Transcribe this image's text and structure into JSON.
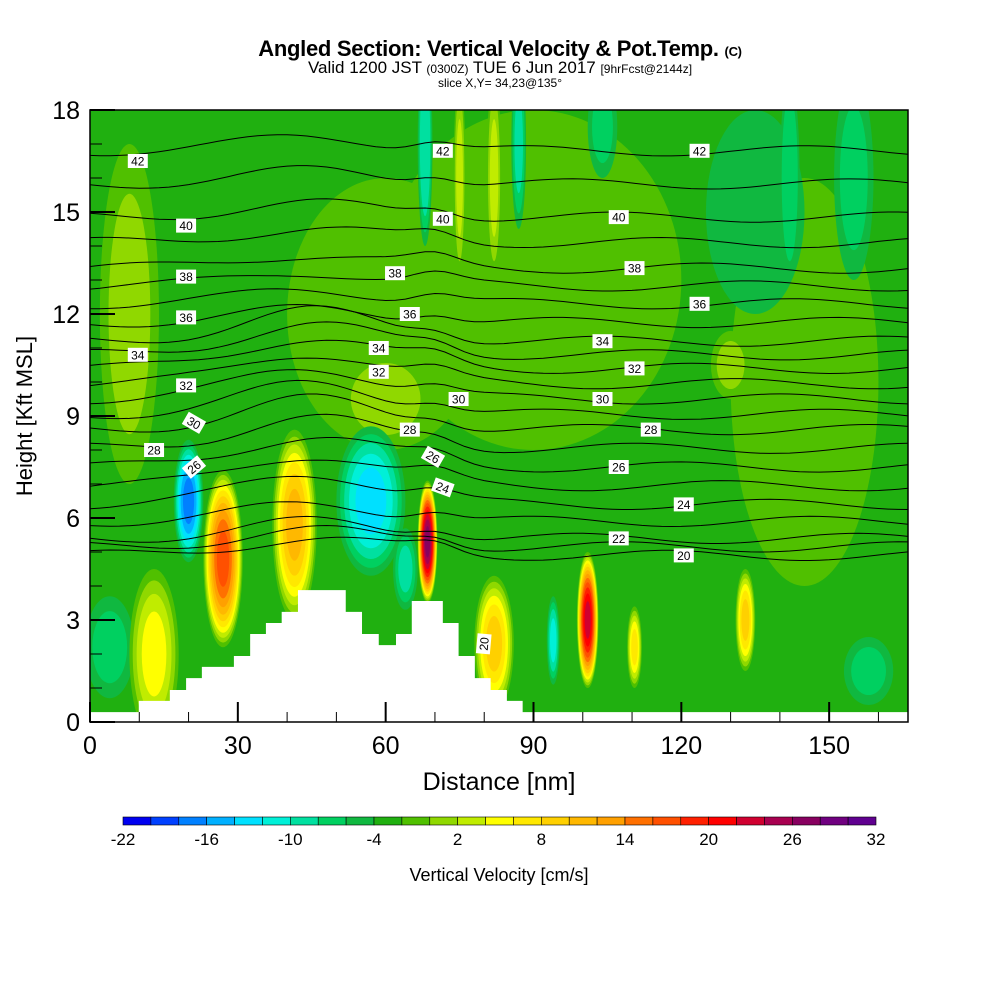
{
  "header": {
    "title": "Angled Section: Vertical Velocity & Pot.Temp.",
    "title_unit": "(C)",
    "valid_prefix": "Valid 1200 JST",
    "valid_utc": "(0300Z)",
    "valid_date": "TUE 6 Jun 2017",
    "forecast": "[9hrFcst@2144z]",
    "slice": "slice X,Y= 34,23@135°"
  },
  "chart_data": {
    "type": "heatmap",
    "subtype": "filled contour cross-section with isentrope line contours",
    "xlabel": "Distance [nm]",
    "ylabel": "Height [Kft MSL]",
    "xlim": [
      0,
      166
    ],
    "ylim": [
      0,
      18
    ],
    "xticks": [
      0,
      30,
      60,
      90,
      120,
      150
    ],
    "yticks": [
      0,
      3,
      6,
      9,
      12,
      15,
      18
    ],
    "colorbar": {
      "label": "Vertical Velocity [cm/s]",
      "min": -22,
      "max": 32,
      "step": 2,
      "tick_labels": [
        "-22",
        "-16",
        "-10",
        "-4",
        "2",
        "8",
        "14",
        "20",
        "26",
        "32"
      ],
      "colors": [
        "#0000f0",
        "#0040ff",
        "#0080ff",
        "#00b0ff",
        "#00e0ff",
        "#00f0d8",
        "#00e0a0",
        "#00d060",
        "#10b840",
        "#20b010",
        "#50c000",
        "#90d800",
        "#c0ec00",
        "#ffff00",
        "#ffe800",
        "#ffd000",
        "#ffb800",
        "#ffa000",
        "#ff7000",
        "#ff5000",
        "#ff2000",
        "#ff0000",
        "#d00030",
        "#a80050",
        "#880060",
        "#700080",
        "#600090"
      ]
    },
    "background_value": -3,
    "field_features_cm_s": [
      {
        "x": 8,
        "y": 12,
        "rx": 6,
        "ry": 5,
        "v": 1
      },
      {
        "x": 60,
        "y": 12,
        "rx": 20,
        "ry": 4,
        "v": -1
      },
      {
        "x": 90,
        "y": 13,
        "rx": 30,
        "ry": 5,
        "v": -1
      },
      {
        "x": 145,
        "y": 10,
        "rx": 15,
        "ry": 6,
        "v": -1
      },
      {
        "x": 135,
        "y": 15,
        "rx": 10,
        "ry": 3,
        "v": -5
      },
      {
        "x": 155,
        "y": 16,
        "rx": 4,
        "ry": 3,
        "v": -7
      },
      {
        "x": 60,
        "y": 9.5,
        "rx": 10,
        "ry": 1.5,
        "v": 1
      },
      {
        "x": 130,
        "y": 10.5,
        "rx": 4,
        "ry": 1,
        "v": 1
      },
      {
        "x": 4,
        "y": 2.2,
        "rx": 5,
        "ry": 1.5,
        "v": -7
      },
      {
        "x": 158,
        "y": 1.5,
        "rx": 5,
        "ry": 1,
        "v": -7
      },
      {
        "x": 68,
        "y": 17,
        "rx": 1.5,
        "ry": 3,
        "v": -10
      },
      {
        "x": 87,
        "y": 17,
        "rx": 1.5,
        "ry": 2.5,
        "v": -9
      },
      {
        "x": 82,
        "y": 16,
        "rx": 1.5,
        "ry": 3,
        "v": 3
      },
      {
        "x": 75,
        "y": 16,
        "rx": 1.2,
        "ry": 3,
        "v": 3
      },
      {
        "x": 104,
        "y": 17.5,
        "rx": 3,
        "ry": 1.5,
        "v": -7
      },
      {
        "x": 142,
        "y": 16,
        "rx": 2,
        "ry": 3,
        "v": -8
      },
      {
        "x": 13,
        "y": 2,
        "rx": 5,
        "ry": 2.5,
        "v": 5
      },
      {
        "x": 82,
        "y": 2.3,
        "rx": 4,
        "ry": 2,
        "v": 8
      },
      {
        "x": 20,
        "y": 6.5,
        "rx": 3,
        "ry": 1.8,
        "v": -17
      },
      {
        "x": 57,
        "y": 6.5,
        "rx": 7,
        "ry": 2.2,
        "v": -13
      },
      {
        "x": 64,
        "y": 4.5,
        "rx": 2.5,
        "ry": 1.2,
        "v": -9
      },
      {
        "x": 27,
        "y": 4.8,
        "rx": 4,
        "ry": 2.6,
        "v": 17
      },
      {
        "x": 41.5,
        "y": 5.8,
        "rx": 4.5,
        "ry": 2.8,
        "v": 11
      },
      {
        "x": 68.5,
        "y": 5.3,
        "rx": 2,
        "ry": 1.8,
        "v": 27
      },
      {
        "x": 101,
        "y": 3,
        "rx": 2.2,
        "ry": 2,
        "v": 23
      },
      {
        "x": 94,
        "y": 2.4,
        "rx": 1.3,
        "ry": 1.3,
        "v": -11
      },
      {
        "x": 133,
        "y": 3,
        "rx": 2,
        "ry": 1.5,
        "v": 8
      },
      {
        "x": 110.5,
        "y": 2.2,
        "rx": 1.5,
        "ry": 1.2,
        "v": 6
      }
    ],
    "terrain_kft": [
      [
        0,
        0.29
      ],
      [
        9.9,
        0.29
      ],
      [
        9.9,
        0.62
      ],
      [
        16.2,
        0.62
      ],
      [
        16.2,
        0.94
      ],
      [
        19.5,
        0.94
      ],
      [
        19.5,
        1.29
      ],
      [
        22.7,
        1.29
      ],
      [
        22.7,
        1.62
      ],
      [
        29.2,
        1.62
      ],
      [
        29.2,
        1.94
      ],
      [
        32.5,
        1.94
      ],
      [
        32.5,
        2.59
      ],
      [
        35.7,
        2.59
      ],
      [
        35.7,
        2.91
      ],
      [
        38.9,
        2.91
      ],
      [
        38.9,
        3.24
      ],
      [
        42.2,
        3.24
      ],
      [
        42.2,
        3.88
      ],
      [
        51.9,
        3.88
      ],
      [
        51.9,
        3.24
      ],
      [
        55.2,
        3.24
      ],
      [
        55.2,
        2.59
      ],
      [
        58.6,
        2.59
      ],
      [
        58.6,
        2.26
      ],
      [
        62.1,
        2.26
      ],
      [
        62.1,
        2.59
      ],
      [
        65.3,
        2.59
      ],
      [
        65.3,
        3.56
      ],
      [
        71.6,
        3.56
      ],
      [
        71.6,
        2.91
      ],
      [
        74.8,
        2.91
      ],
      [
        74.8,
        1.94
      ],
      [
        78.1,
        1.94
      ],
      [
        78.1,
        1.29
      ],
      [
        81.3,
        1.29
      ],
      [
        81.3,
        0.94
      ],
      [
        84.6,
        0.94
      ],
      [
        84.6,
        0.62
      ],
      [
        87.8,
        0.62
      ],
      [
        87.8,
        0.29
      ],
      [
        166,
        0.29
      ]
    ],
    "isentrope_base_heights_kft": {
      "20": 4.9,
      "22": 5.4,
      "24": 6.4,
      "26": 7.5,
      "28": 8.6,
      "30": 9.5,
      "32": 10.4,
      "34": 11.2,
      "36": 12.3,
      "38": 13.35,
      "40": 14.85,
      "42": 16.8
    },
    "contour_labels": [
      {
        "text": "42",
        "x": 9.7,
        "y": 16.5
      },
      {
        "text": "42",
        "x": 71.6,
        "y": 16.8
      },
      {
        "text": "42",
        "x": 123.7,
        "y": 16.8
      },
      {
        "text": "40",
        "x": 19.5,
        "y": 14.6
      },
      {
        "text": "40",
        "x": 71.6,
        "y": 14.8
      },
      {
        "text": "40",
        "x": 107.3,
        "y": 14.85
      },
      {
        "text": "38",
        "x": 19.5,
        "y": 13.1
      },
      {
        "text": "38",
        "x": 61.9,
        "y": 13.2
      },
      {
        "text": "38",
        "x": 110.5,
        "y": 13.35
      },
      {
        "text": "36",
        "x": 19.5,
        "y": 11.9
      },
      {
        "text": "36",
        "x": 64.9,
        "y": 12.0
      },
      {
        "text": "36",
        "x": 123.7,
        "y": 12.3
      },
      {
        "text": "34",
        "x": 9.7,
        "y": 10.8
      },
      {
        "text": "34",
        "x": 58.6,
        "y": 11.0
      },
      {
        "text": "34",
        "x": 104,
        "y": 11.2
      },
      {
        "text": "32",
        "x": 19.5,
        "y": 9.9
      },
      {
        "text": "32",
        "x": 58.6,
        "y": 10.3
      },
      {
        "text": "32",
        "x": 110.5,
        "y": 10.4
      },
      {
        "text": "30",
        "x": 21.1,
        "y": 8.8,
        "rot": 30
      },
      {
        "text": "30",
        "x": 74.8,
        "y": 9.5
      },
      {
        "text": "30",
        "x": 104,
        "y": 9.5
      },
      {
        "text": "28",
        "x": 13,
        "y": 8.0
      },
      {
        "text": "28",
        "x": 64.9,
        "y": 8.6
      },
      {
        "text": "28",
        "x": 113.8,
        "y": 8.6
      },
      {
        "text": "26",
        "x": 21.1,
        "y": 7.5,
        "rot": -40
      },
      {
        "text": "26",
        "x": 69.6,
        "y": 7.8,
        "rot": 30
      },
      {
        "text": "26",
        "x": 107.3,
        "y": 7.5
      },
      {
        "text": "24",
        "x": 71.6,
        "y": 6.9,
        "rot": 20
      },
      {
        "text": "24",
        "x": 120.5,
        "y": 6.4
      },
      {
        "text": "22",
        "x": 107.3,
        "y": 5.4
      },
      {
        "text": "20",
        "x": 120.5,
        "y": 4.9
      },
      {
        "text": "20",
        "x": 79.9,
        "y": 2.3,
        "rot": -85
      }
    ]
  }
}
